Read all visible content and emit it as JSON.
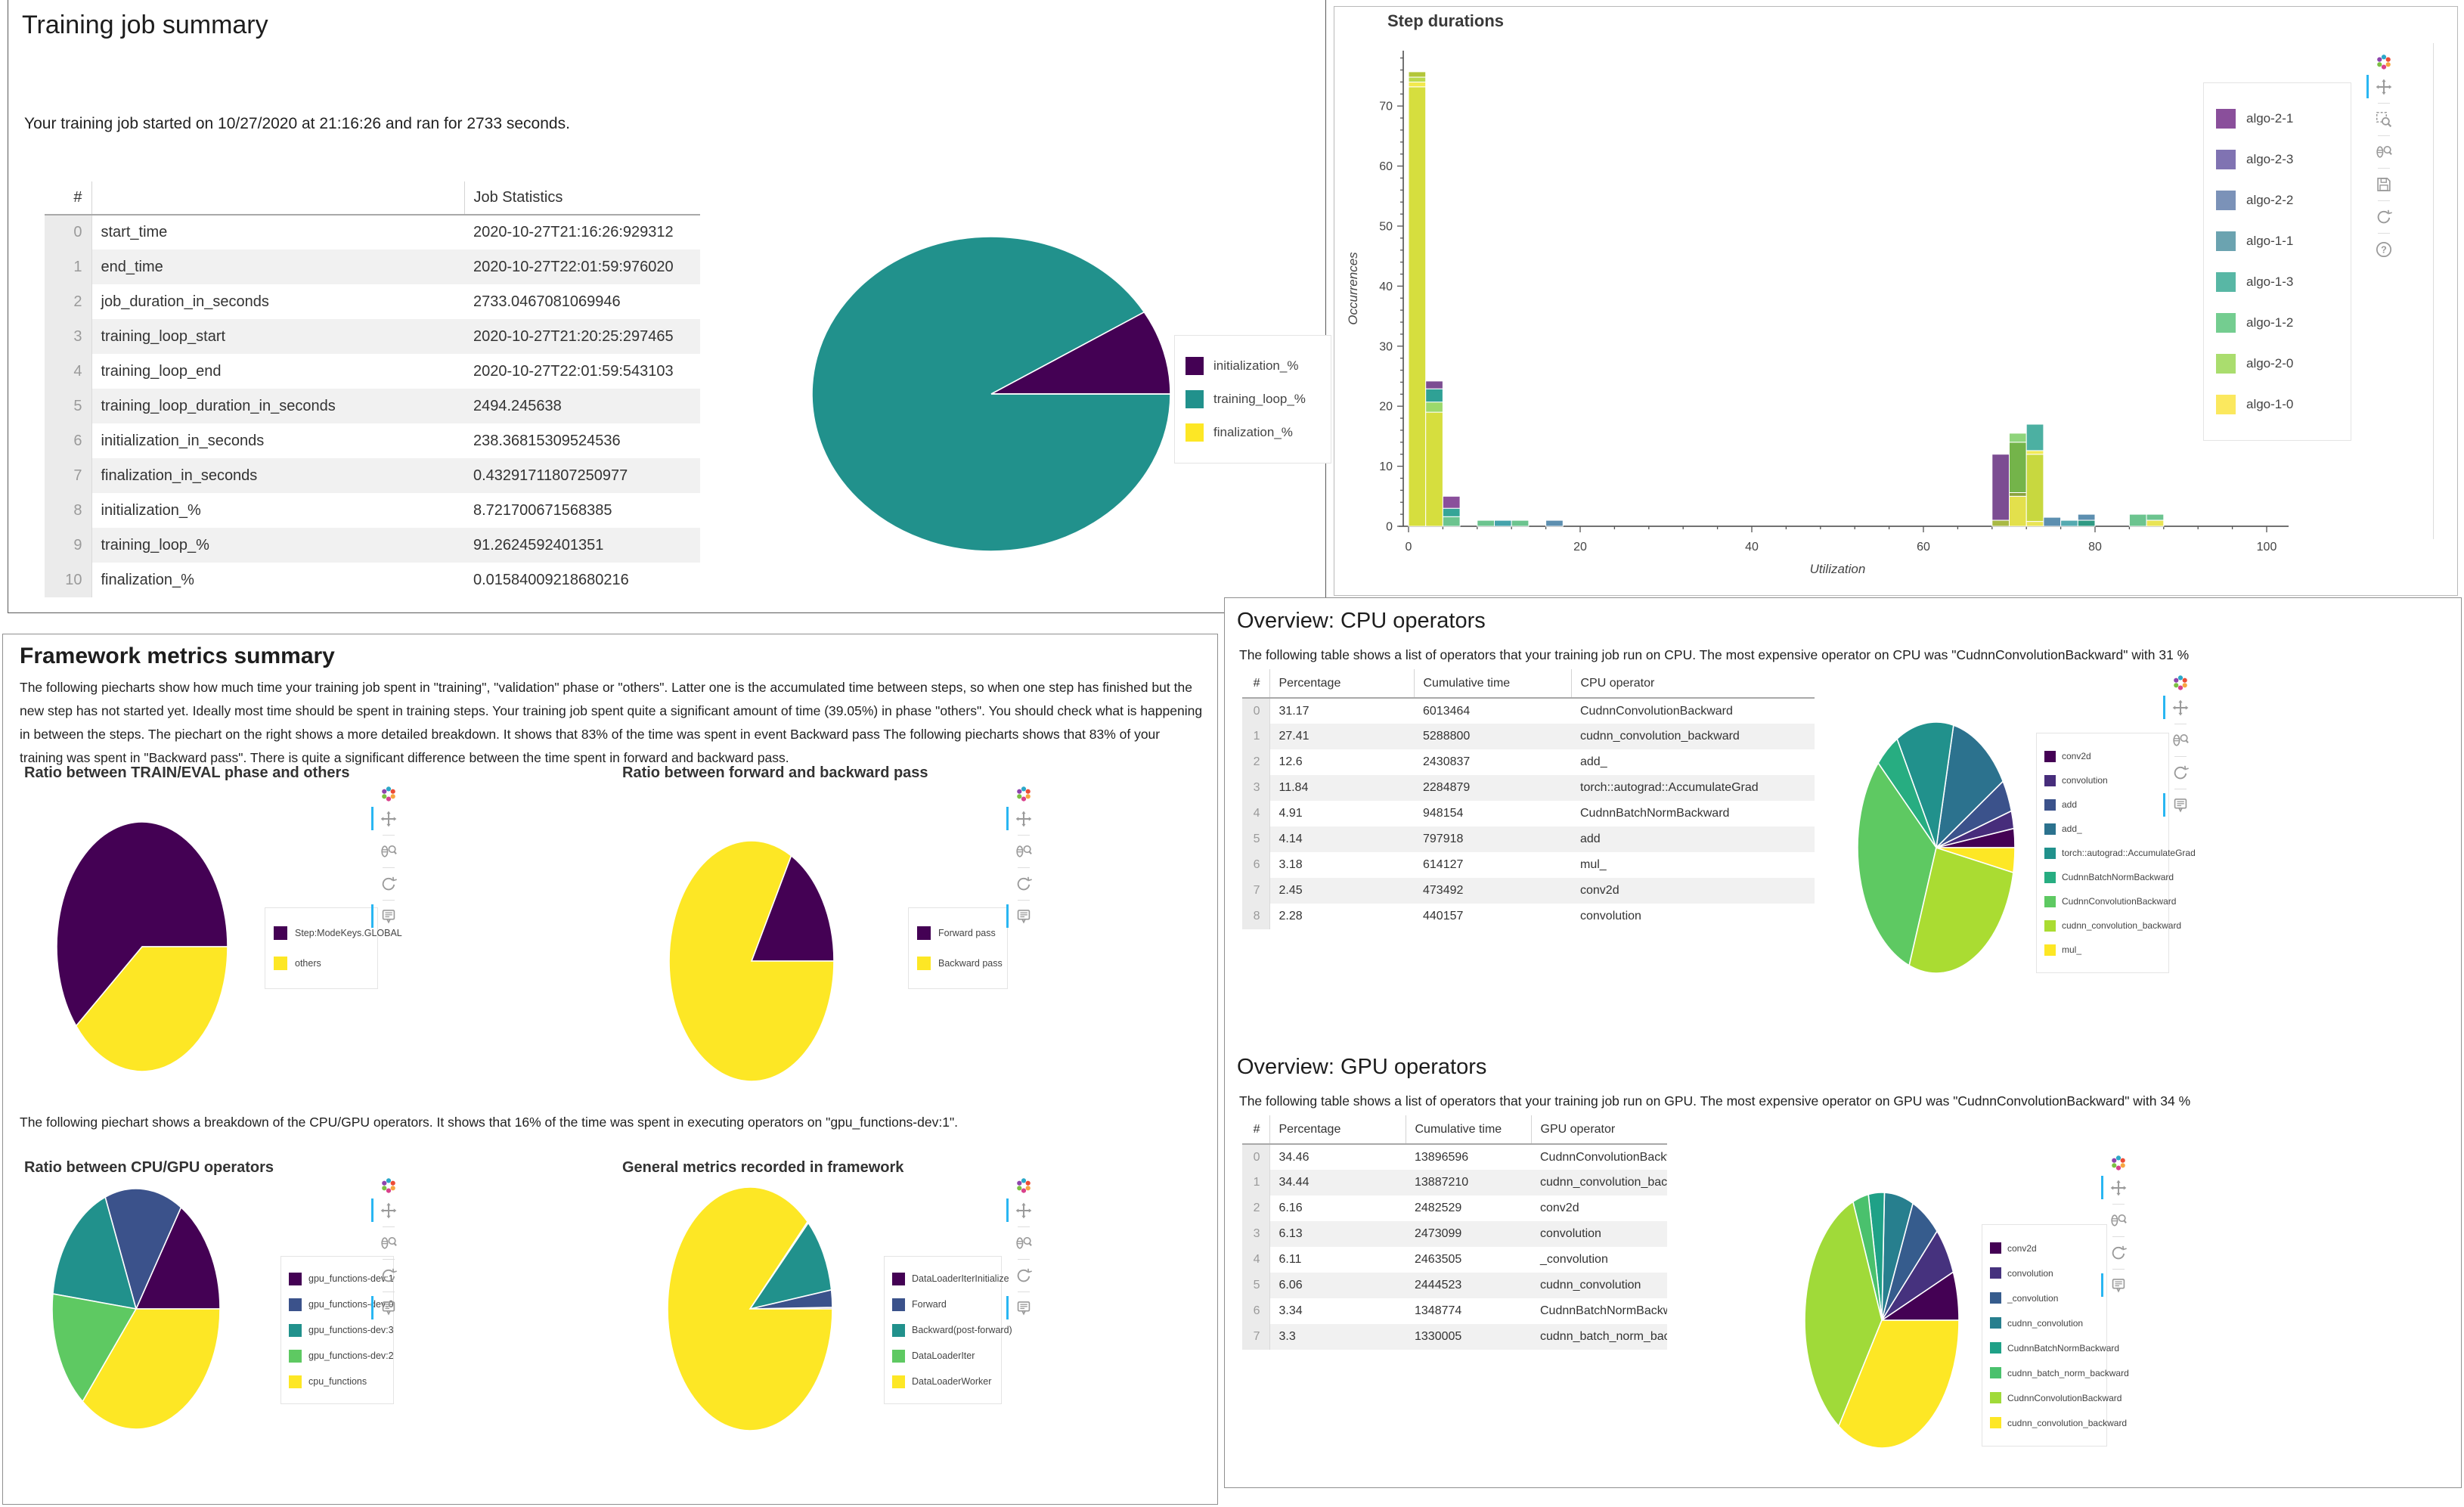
{
  "panelA": {
    "title": "Training job summary",
    "intro": "Your training job started on 10/27/2020 at 21:16:26 and ran for 2733 seconds.",
    "table": {
      "headers": [
        "#",
        "",
        "Job Statistics"
      ],
      "rows": [
        [
          "0",
          "start_time",
          "2020-10-27T21:16:26:929312"
        ],
        [
          "1",
          "end_time",
          "2020-10-27T22:01:59:976020"
        ],
        [
          "2",
          "job_duration_in_seconds",
          "2733.0467081069946"
        ],
        [
          "3",
          "training_loop_start",
          "2020-10-27T21:20:25:297465"
        ],
        [
          "4",
          "training_loop_end",
          "2020-10-27T22:01:59:543103"
        ],
        [
          "5",
          "training_loop_duration_in_seconds",
          "2494.245638"
        ],
        [
          "6",
          "initialization_in_seconds",
          "238.36815309524536"
        ],
        [
          "7",
          "finalization_in_seconds",
          "0.43291711807250977"
        ],
        [
          "8",
          "initialization_%",
          "8.721700671568385"
        ],
        [
          "9",
          "training_loop_%",
          "91.2624592401351"
        ],
        [
          "10",
          "finalization_%",
          "0.01584009218680216"
        ]
      ]
    }
  },
  "panelC": {
    "title": "Framework metrics summary",
    "para1": "The following piecharts show how much time your training job spent in \"training\", \"validation\" phase or \"others\". Latter one is the accumulated time between steps, so when one step has finished but the new step has not started yet. Ideally most time should be spent in training steps. Your training job spent quite a significant amount of time (39.05%) in phase \"others\". You should check what is happening in between the steps. The piechart on the right shows a more detailed breakdown. It shows that 83% of the time was spent in event Backward pass The following piecharts shows that 83% of your training was spent in \"Backward pass\". There is quite a significant difference between the time spent in forward and backward pass.",
    "para2": "The following piechart shows a breakdown of the CPU/GPU operators. It shows that 16% of the time was spent in executing operators on \"gpu_functions-dev:1\"."
  },
  "panelD": {
    "cpu_title": "Overview: CPU operators",
    "cpu_text": "The following table shows a list of operators that your training job run on CPU. The most expensive operator on CPU was \"CudnnConvolutionBackward\" with 31 %",
    "cpu_table": {
      "headers": [
        "#",
        "Percentage",
        "Cumulative time",
        "CPU operator"
      ],
      "rows": [
        [
          "0",
          "31.17",
          "6013464",
          "CudnnConvolutionBackward"
        ],
        [
          "1",
          "27.41",
          "5288800",
          "cudnn_convolution_backward"
        ],
        [
          "2",
          "12.6",
          "2430837",
          "add_"
        ],
        [
          "3",
          "11.84",
          "2284879",
          "torch::autograd::AccumulateGrad"
        ],
        [
          "4",
          "4.91",
          "948154",
          "CudnnBatchNormBackward"
        ],
        [
          "5",
          "4.14",
          "797918",
          "add"
        ],
        [
          "6",
          "3.18",
          "614127",
          "mul_"
        ],
        [
          "7",
          "2.45",
          "473492",
          "conv2d"
        ],
        [
          "8",
          "2.28",
          "440157",
          "convolution"
        ]
      ]
    },
    "gpu_title": "Overview: GPU operators",
    "gpu_text": "The following table shows a list of operators that your training job run on GPU. The most expensive operator on GPU was \"CudnnConvolutionBackward\" with 34 %",
    "gpu_table": {
      "headers": [
        "#",
        "Percentage",
        "Cumulative time",
        "GPU operator"
      ],
      "rows": [
        [
          "0",
          "34.46",
          "13896596",
          "CudnnConvolutionBackwar"
        ],
        [
          "1",
          "34.44",
          "13887210",
          "cudnn_convolution_backwa"
        ],
        [
          "2",
          "6.16",
          "2482529",
          "conv2d"
        ],
        [
          "3",
          "6.13",
          "2473099",
          "convolution"
        ],
        [
          "4",
          "6.11",
          "2463505",
          "_convolution"
        ],
        [
          "5",
          "6.06",
          "2444523",
          "cudnn_convolution"
        ],
        [
          "6",
          "3.34",
          "1348774",
          "CudnnBatchNormBackwar"
        ],
        [
          "7",
          "3.3",
          "1330005",
          "cudnn_batch_norm_backw"
        ]
      ]
    }
  },
  "toolbars": {
    "pie_tools": [
      "bokeh-logo",
      "pan",
      "wheel-zoom",
      "reset",
      "hover"
    ],
    "step_tools": [
      "bokeh-logo",
      "pan",
      "box-zoom",
      "wheel-zoom",
      "save",
      "reset",
      "help"
    ],
    "pie_active": [
      "pan",
      "hover"
    ],
    "step_active": [
      "pan"
    ],
    "active_color": "#29b6f2"
  },
  "chart_data": [
    {
      "id": "job_summary_pie",
      "type": "pie",
      "title": "",
      "slices": [
        {
          "label": "initialization_%",
          "value": 8.72,
          "color": "#440154"
        },
        {
          "label": "training_loop_%",
          "value": 91.26,
          "color": "#21918c"
        },
        {
          "label": "finalization_%",
          "value": 0.02,
          "color": "#fde725"
        }
      ],
      "legend_position": "right"
    },
    {
      "id": "step_durations",
      "type": "bar",
      "title": "Step durations",
      "xlabel": "Utilization",
      "ylabel": "Occurrences",
      "xlim": [
        0,
        100
      ],
      "ylim": [
        0,
        79
      ],
      "grid": false,
      "legend_position": "top-right",
      "xticks": [
        0,
        20,
        40,
        60,
        80,
        100
      ],
      "yticks": [
        0,
        10,
        20,
        30,
        40,
        50,
        60,
        70
      ],
      "series": [
        {
          "name": "algo-2-1",
          "color": "#8a4f9b"
        },
        {
          "name": "algo-2-3",
          "color": "#8073b2"
        },
        {
          "name": "algo-2-2",
          "color": "#7b92b8"
        },
        {
          "name": "algo-1-1",
          "color": "#6ba3b0"
        },
        {
          "name": "algo-1-3",
          "color": "#58b7a5"
        },
        {
          "name": "algo-1-2",
          "color": "#74cd90"
        },
        {
          "name": "algo-2-0",
          "color": "#aadd6e"
        },
        {
          "name": "algo-1-0",
          "color": "#fbe85e"
        }
      ],
      "bars": [
        {
          "x0": 0,
          "x1": 2,
          "total": 75.7,
          "segments": [
            [
              "#d6de3e",
              73.2
            ],
            [
              "#f2e94e",
              0.8
            ],
            [
              "#bada4d",
              0.8
            ],
            [
              "#b3c639",
              0.9
            ]
          ]
        },
        {
          "x0": 2,
          "x1": 4,
          "total": 24.2,
          "segments": [
            [
              "#d6de3e",
              19.0
            ],
            [
              "#9bd96b",
              1.7
            ],
            [
              "#2fa195",
              2.2
            ],
            [
              "#7c4d92",
              1.3
            ]
          ]
        },
        {
          "x0": 4,
          "x1": 6,
          "total": 5.0,
          "segments": [
            [
              "#6cc48f",
              1.6
            ],
            [
              "#35a597",
              1.4
            ],
            [
              "#8a4f9b",
              2.0
            ]
          ]
        },
        {
          "x0": 8,
          "x1": 10,
          "total": 1.0,
          "segments": [
            [
              "#6cc48f",
              1.0
            ]
          ]
        },
        {
          "x0": 10,
          "x1": 12,
          "total": 1.0,
          "segments": [
            [
              "#45a3ab",
              1.0
            ]
          ]
        },
        {
          "x0": 12,
          "x1": 14,
          "total": 1.0,
          "segments": [
            [
              "#6cc48f",
              1.0
            ]
          ]
        },
        {
          "x0": 16,
          "x1": 18,
          "total": 1.0,
          "segments": [
            [
              "#5d8fb0",
              1.0
            ]
          ]
        },
        {
          "x0": 68,
          "x1": 70,
          "total": 12.0,
          "segments": [
            [
              "#a9b945",
              1.0
            ],
            [
              "#7c4d92",
              11.0
            ]
          ]
        },
        {
          "x0": 70,
          "x1": 72,
          "total": 15.5,
          "segments": [
            [
              "#e3e04c",
              5.0
            ],
            [
              "#8aa23c",
              0.6
            ],
            [
              "#74b44a",
              8.4
            ],
            [
              "#8fd47b",
              1.5
            ]
          ]
        },
        {
          "x0": 72,
          "x1": 74,
          "total": 17.0,
          "segments": [
            [
              "#e9e455",
              0.8
            ],
            [
              "#c8d83f",
              11.2
            ],
            [
              "#f2ea57",
              0.6
            ],
            [
              "#4cb0a2",
              4.4
            ]
          ]
        },
        {
          "x0": 74,
          "x1": 76,
          "total": 1.5,
          "segments": [
            [
              "#5d8fb0",
              1.5
            ]
          ]
        },
        {
          "x0": 76,
          "x1": 78,
          "total": 1.0,
          "segments": [
            [
              "#55aab0",
              1.0
            ]
          ]
        },
        {
          "x0": 78,
          "x1": 80,
          "total": 2.0,
          "segments": [
            [
              "#2f9a83",
              1.0
            ],
            [
              "#5d8fb0",
              1.0
            ]
          ]
        },
        {
          "x0": 84,
          "x1": 86,
          "total": 2.0,
          "segments": [
            [
              "#6cc48f",
              2.0
            ]
          ]
        },
        {
          "x0": 86,
          "x1": 88,
          "total": 2.0,
          "segments": [
            [
              "#e9e455",
              1.0
            ],
            [
              "#6cc48f",
              1.0
            ]
          ]
        }
      ]
    },
    {
      "id": "train_eval_pie",
      "type": "pie",
      "title": "Ratio between TRAIN/EVAL phase and others",
      "slices": [
        {
          "label": "Step:ModeKeys.GLOBAL",
          "value": 60.95,
          "color": "#440154"
        },
        {
          "label": "others",
          "value": 39.05,
          "color": "#fde725"
        }
      ]
    },
    {
      "id": "fwd_bwd_pie",
      "type": "pie",
      "title": "Ratio between forward and backward pass",
      "slices": [
        {
          "label": "Forward pass",
          "value": 17,
          "color": "#440154"
        },
        {
          "label": "Backward pass",
          "value": 83,
          "color": "#fde725"
        }
      ]
    },
    {
      "id": "cpu_gpu_pie",
      "type": "pie",
      "title": "Ratio between CPU/GPU operators",
      "slices": [
        {
          "label": "gpu_functions-dev:1",
          "value": 16,
          "color": "#440154"
        },
        {
          "label": "gpu_functions-dev:0",
          "value": 15,
          "color": "#3b528b"
        },
        {
          "label": "gpu_functions-dev:3",
          "value": 17,
          "color": "#21918c"
        },
        {
          "label": "gpu_functions-dev:2",
          "value": 16,
          "color": "#5ec962"
        },
        {
          "label": "cpu_functions",
          "value": 36,
          "color": "#fde725"
        }
      ]
    },
    {
      "id": "framework_general_pie",
      "type": "pie",
      "title": "General metrics recorded in framework",
      "slices": [
        {
          "label": "DataLoaderIterInitialize",
          "value": 0.2,
          "color": "#440154"
        },
        {
          "label": "Forward",
          "value": 2.3,
          "color": "#3b528b"
        },
        {
          "label": "Backward(post-forward)",
          "value": 10.0,
          "color": "#21918c"
        },
        {
          "label": "DataLoaderIter",
          "value": 0.2,
          "color": "#5ec962"
        },
        {
          "label": "DataLoaderWorker",
          "value": 87.3,
          "color": "#fde725"
        }
      ]
    },
    {
      "id": "cpu_ops_pie",
      "type": "pie",
      "title": "",
      "slices": [
        {
          "label": "conv2d",
          "value": 2.45,
          "color": "#440154"
        },
        {
          "label": "convolution",
          "value": 2.28,
          "color": "#472d7b"
        },
        {
          "label": "add",
          "value": 4.14,
          "color": "#3b528b"
        },
        {
          "label": "add_",
          "value": 12.6,
          "color": "#2c728e"
        },
        {
          "label": "torch::autograd::AccumulateGrad",
          "value": 11.84,
          "color": "#21918c"
        },
        {
          "label": "CudnnBatchNormBackward",
          "value": 4.91,
          "color": "#27ad81"
        },
        {
          "label": "CudnnConvolutionBackward",
          "value": 31.17,
          "color": "#5ec962"
        },
        {
          "label": "cudnn_convolution_backward",
          "value": 27.41,
          "color": "#aadc32"
        },
        {
          "label": "mul_",
          "value": 3.18,
          "color": "#fde725"
        }
      ]
    },
    {
      "id": "gpu_ops_pie",
      "type": "pie",
      "title": "",
      "slices": [
        {
          "label": "conv2d",
          "value": 6.16,
          "color": "#440154"
        },
        {
          "label": "convolution",
          "value": 6.13,
          "color": "#46327e"
        },
        {
          "label": "_convolution",
          "value": 6.11,
          "color": "#365c8d"
        },
        {
          "label": "cudnn_convolution",
          "value": 6.06,
          "color": "#277f8e"
        },
        {
          "label": "CudnnBatchNormBackward",
          "value": 3.34,
          "color": "#1fa187"
        },
        {
          "label": "cudnn_batch_norm_backward",
          "value": 3.3,
          "color": "#4ac16d"
        },
        {
          "label": "CudnnConvolutionBackward",
          "value": 34.46,
          "color": "#a0da39"
        },
        {
          "label": "cudnn_convolution_backward",
          "value": 34.44,
          "color": "#fde725"
        }
      ]
    }
  ]
}
